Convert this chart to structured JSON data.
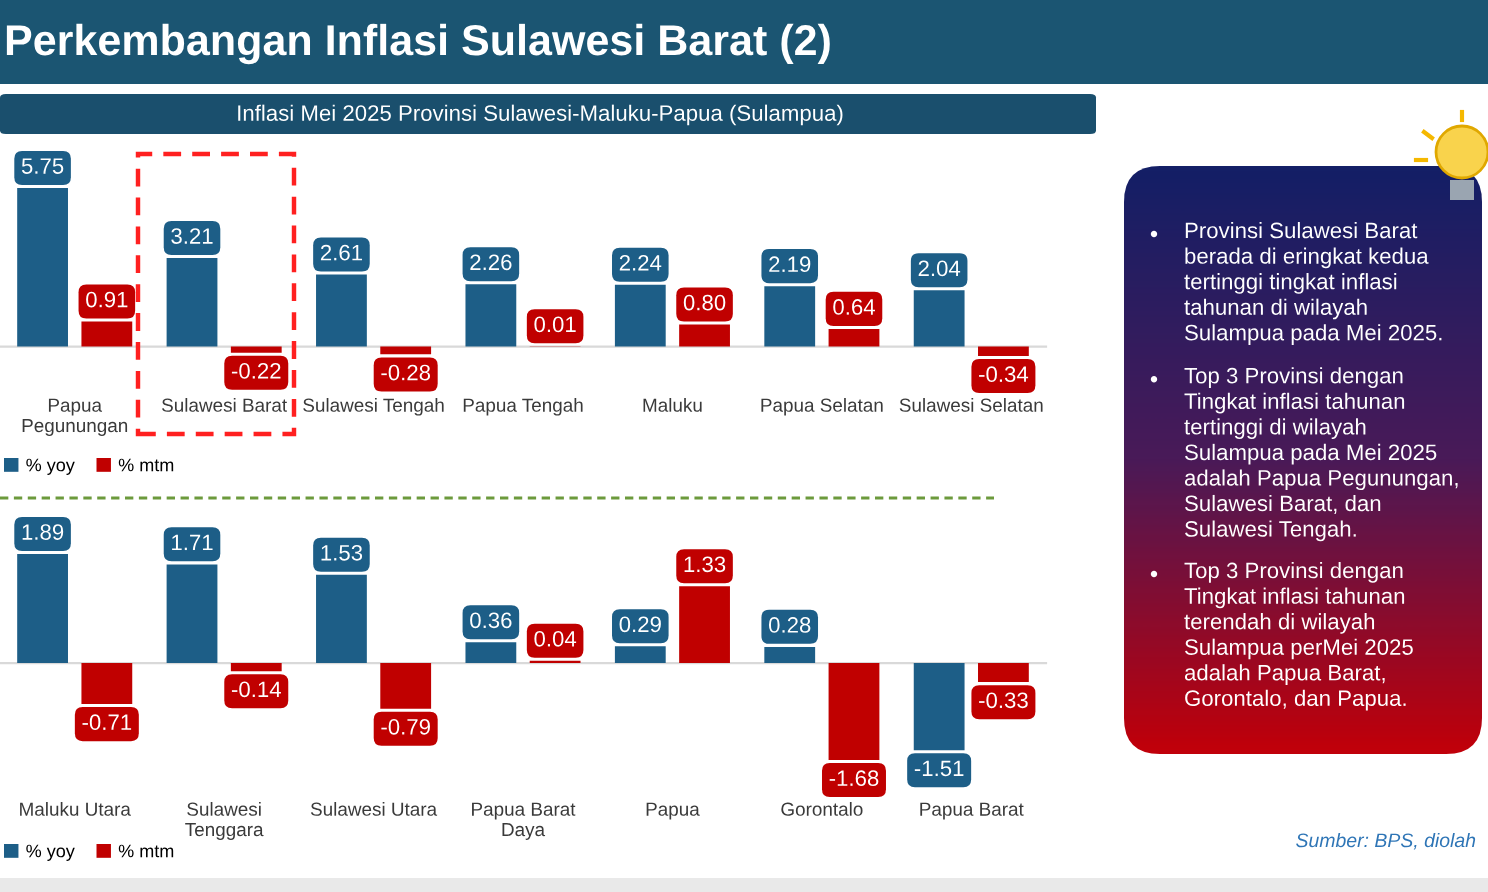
{
  "chart_data": [
    {
      "type": "bar",
      "title": "Perkembangan Inflasi Sulawesi Barat (2)",
      "subtitle": "Inflasi Mei 2025 Provinsi Sulawesi-Maluku-Papua (Sulampua)",
      "categories": [
        "Papua\nPegunungan",
        "Sulawesi Barat",
        "Sulawesi Tengah",
        "Papua Tengah",
        "Maluku",
        "Papua Selatan",
        "Sulawesi Selatan"
      ],
      "series": [
        {
          "name": "% yoy",
          "color": "#1d5e87",
          "values": [
            5.75,
            3.21,
            2.61,
            2.26,
            2.24,
            2.19,
            2.04
          ],
          "value_labels": [
            "5.75",
            "3.21",
            "2.61",
            "2.26",
            "2.24",
            "2.19",
            "2.04"
          ]
        },
        {
          "name": "% mtm",
          "color": "#c00000",
          "values": [
            0.91,
            -0.22,
            -0.28,
            0.01,
            0.8,
            0.64,
            -0.34
          ],
          "value_labels": [
            "0.91",
            "-0.22",
            "-0.28",
            "0.01",
            "0.80",
            "0.64",
            "-0.34"
          ]
        }
      ],
      "legend": "bottom left"
    },
    {
      "type": "bar",
      "categories": [
        "Maluku Utara",
        "Sulawesi\nTenggara",
        "Sulawesi Utara",
        "Papua Barat\nDaya",
        "Papua",
        "Gorontalo",
        "Papua Barat"
      ],
      "series": [
        {
          "name": "% yoy",
          "color": "#1d5e87",
          "values": [
            1.89,
            1.71,
            1.53,
            0.36,
            0.29,
            0.28,
            -1.51
          ],
          "value_labels": [
            "1.89",
            "1.71",
            "1.53",
            "0.36",
            "0.29",
            "0.28",
            "-1.51"
          ]
        },
        {
          "name": "% mtm",
          "color": "#c00000",
          "values": [
            -0.71,
            -0.14,
            -0.79,
            0.04,
            1.33,
            -1.68,
            -0.33
          ],
          "value_labels": [
            "-0.71",
            "-0.14",
            "-0.79",
            "0.04",
            "1.33",
            "-1.68",
            "-0.33"
          ]
        }
      ],
      "legend": "bottom left",
      "annotations": [
        "Sumber: BPS, diolah"
      ]
    },
    {
      "type": "other",
      "annotations": [
        "Provinsi Sulawesi Barat berada di eringkat kedua tertinggi tingkat inflasi tahunan di wilayah Sulampua pada Mei 2025.",
        "Top 3 Provinsi dengan Tingkat inflasi tahunan tertinggi di wilayah Sulampua pada Mei 2025 adalah Papua Pegunungan, Sulawesi Barat, dan Sulawesi Tengah.",
        "Top 3 Provinsi dengan Tingkat inflasi tahunan terendah di wilayah Sulampua perMei 2025 adalah Papua Barat, Gorontalo, dan Papua."
      ]
    }
  ]
}
